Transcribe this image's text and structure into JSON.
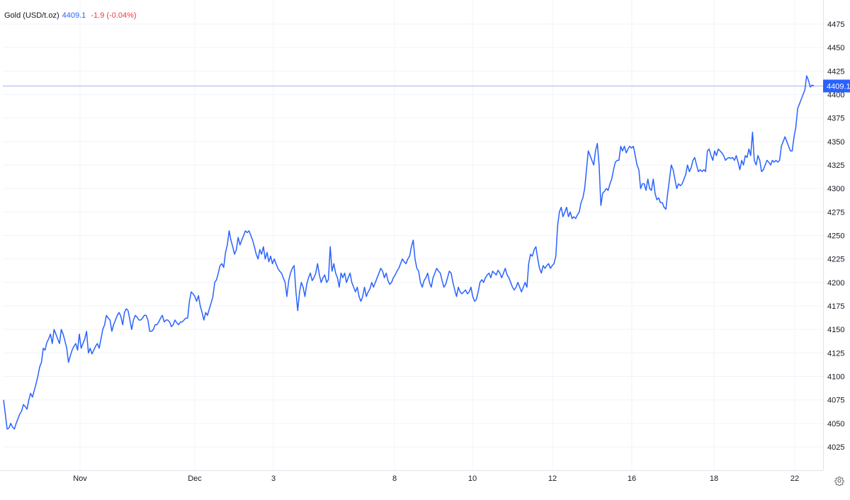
{
  "legend": {
    "symbol": "Gold (USD/t.oz)",
    "price": "4409.1",
    "change": "-1.9 (-0.04%)"
  },
  "last_price_label": "4409.1",
  "colors": {
    "line": "#2962ff",
    "grid": "#f0f3fa",
    "text": "#131722",
    "negative": "#f23645",
    "price_line": "#9db0f7"
  },
  "icons": {
    "settings": "gear-icon"
  },
  "chart_data": {
    "type": "line",
    "title": "",
    "xlabel": "",
    "ylabel": "",
    "ylim": [
      4000,
      4490
    ],
    "y_ticks": [
      4025,
      4050,
      4075,
      4100,
      4125,
      4150,
      4175,
      4200,
      4225,
      4250,
      4275,
      4300,
      4325,
      4350,
      4375,
      4400,
      4425,
      4450,
      4475
    ],
    "x_tick_labels": [
      "Nov",
      "Dec",
      "3",
      "8",
      "10",
      "12",
      "16",
      "18",
      "22"
    ],
    "grid": true,
    "last_value": 4409.1,
    "series": [
      {
        "name": "Gold (USD/t.oz)",
        "values": [
          4075,
          4060,
          4044,
          4045,
          4050,
          4046,
          4044,
          4050,
          4055,
          4060,
          4063,
          4070,
          4068,
          4065,
          4075,
          4082,
          4078,
          4085,
          4092,
          4100,
          4110,
          4115,
          4130,
          4128,
          4136,
          4140,
          4145,
          4135,
          4150,
          4145,
          4140,
          4135,
          4150,
          4145,
          4138,
          4130,
          4115,
          4122,
          4128,
          4132,
          4135,
          4128,
          4145,
          4130,
          4135,
          4140,
          4148,
          4125,
          4130,
          4124,
          4128,
          4132,
          4135,
          4130,
          4140,
          4150,
          4155,
          4165,
          4162,
          4160,
          4148,
          4155,
          4160,
          4165,
          4168,
          4164,
          4155,
          4168,
          4172,
          4170,
          4160,
          4150,
          4160,
          4165,
          4163,
          4160,
          4160,
          4162,
          4165,
          4165,
          4160,
          4148,
          4148,
          4150,
          4155,
          4155,
          4158,
          4162,
          4165,
          4158,
          4160,
          4160,
          4158,
          4153,
          4155,
          4160,
          4157,
          4155,
          4158,
          4158,
          4160,
          4162,
          4162,
          4180,
          4190,
          4188,
          4185,
          4180,
          4186,
          4175,
          4168,
          4160,
          4168,
          4165,
          4172,
          4178,
          4185,
          4200,
          4203,
          4210,
          4218,
          4220,
          4216,
          4232,
          4240,
          4255,
          4245,
          4238,
          4230,
          4235,
          4248,
          4240,
          4245,
          4250,
          4255,
          4253,
          4255,
          4250,
          4245,
          4238,
          4230,
          4225,
          4235,
          4230,
          4238,
          4225,
          4232,
          4222,
          4228,
          4220,
          4225,
          4220,
          4215,
          4212,
          4210,
          4205,
          4200,
          4185,
          4202,
          4210,
          4215,
          4218,
          4190,
          4170,
          4190,
          4200,
          4195,
          4185,
          4198,
          4205,
          4210,
          4202,
          4205,
          4210,
          4220,
          4208,
          4200,
          4205,
          4208,
          4200,
          4203,
          4238,
          4212,
          4220,
          4210,
          4205,
          4195,
          4210,
          4205,
          4210,
          4200,
          4205,
          4210,
          4200,
          4195,
          4190,
          4195,
          4185,
          4180,
          4185,
          4195,
          4185,
          4190,
          4193,
          4200,
          4195,
          4200,
          4205,
          4210,
          4215,
          4212,
          4205,
          4210,
          4202,
          4198,
          4200,
          4205,
          4208,
          4212,
          4215,
          4220,
          4225,
          4222,
          4220,
          4225,
          4228,
          4238,
          4245,
          4225,
          4215,
          4212,
          4200,
          4195,
          4202,
          4205,
          4210,
          4200,
          4195,
          4205,
          4210,
          4215,
          4212,
          4210,
          4202,
          4195,
          4198,
          4205,
          4212,
          4210,
          4200,
          4192,
          4185,
          4195,
          4190,
          4188,
          4190,
          4192,
          4188,
          4190,
          4195,
          4185,
          4180,
          4182,
          4190,
          4200,
          4203,
          4200,
          4205,
          4208,
          4210,
          4205,
          4212,
          4210,
          4208,
          4213,
          4210,
          4205,
          4210,
          4215,
          4208,
          4205,
          4200,
          4195,
          4192,
          4195,
          4200,
          4195,
          4190,
          4195,
          4200,
          4195,
          4220,
          4230,
          4228,
          4235,
          4238,
          4225,
          4215,
          4210,
          4218,
          4215,
          4218,
          4220,
          4215,
          4218,
          4220,
          4228,
          4260,
          4275,
          4280,
          4270,
          4275,
          4280,
          4270,
          4275,
          4268,
          4270,
          4268,
          4272,
          4275,
          4285,
          4290,
          4300,
          4320,
          4340,
          4335,
          4330,
          4325,
          4340,
          4348,
          4325,
          4282,
          4295,
          4297,
          4300,
          4298,
          4305,
          4310,
          4320,
          4328,
          4330,
          4330,
          4345,
          4340,
          4345,
          4338,
          4342,
          4345,
          4343,
          4345,
          4335,
          4325,
          4320,
          4300,
          4305,
          4305,
          4298,
          4310,
          4300,
          4298,
          4310,
          4295,
          4288,
          4290,
          4285,
          4285,
          4280,
          4278,
          4295,
          4310,
          4325,
          4320,
          4310,
          4300,
          4305,
          4303,
          4305,
          4310,
          4315,
          4325,
          4318,
          4322,
          4330,
          4333,
          4325,
          4318,
          4320,
          4318,
          4320,
          4318,
          4340,
          4342,
          4335,
          4330,
          4340,
          4335,
          4342,
          4340,
          4338,
          4335,
          4330,
          4332,
          4333,
          4332,
          4333,
          4330,
          4335,
          4328,
          4320,
          4330,
          4325,
          4335,
          4333,
          4342,
          4335,
          4360,
          4330,
          4325,
          4335,
          4330,
          4318,
          4320,
          4325,
          4330,
          4328,
          4325,
          4330,
          4328,
          4330,
          4328,
          4330,
          4345,
          4350,
          4355,
          4350,
          4345,
          4340,
          4340,
          4355,
          4365,
          4385,
          4390,
          4395,
          4400,
          4405,
          4420,
          4415,
          4408,
          4410,
          4409.1
        ]
      }
    ]
  }
}
